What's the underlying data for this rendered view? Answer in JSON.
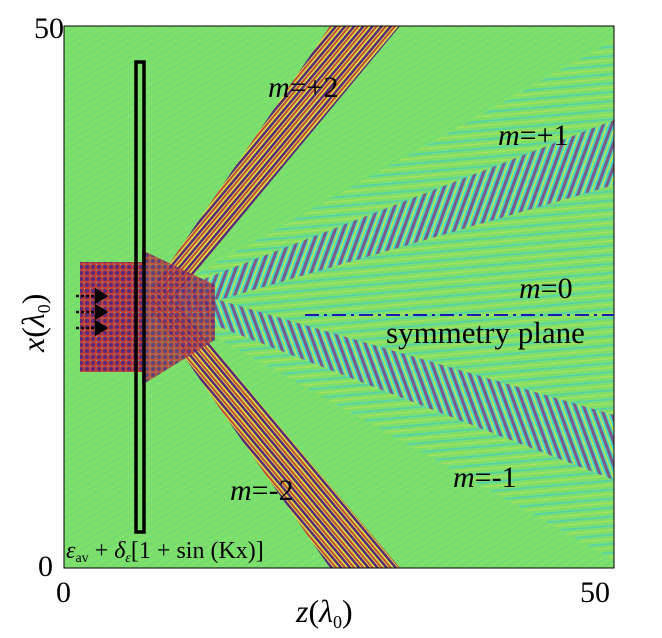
{
  "axes": {
    "x_label_main": "z",
    "x_label_unit_open": "(",
    "x_label_unit_sym": "λ",
    "x_label_unit_sub": "0",
    "x_label_unit_close": ")",
    "y_label_main": "x",
    "y_label_unit_open": "(",
    "y_label_unit_sym": "λ",
    "y_label_unit_sub": "0",
    "y_label_unit_close": ")",
    "x_ticks": [
      "0",
      "50"
    ],
    "y_ticks": [
      "0",
      "50"
    ]
  },
  "orders": {
    "m_plus2": {
      "m": "m",
      "eq": "=+2"
    },
    "m_plus1": {
      "m": "m",
      "eq": "=+1"
    },
    "m_zero": {
      "m": "m",
      "eq": "=0"
    },
    "m_minus1": {
      "m": "m",
      "eq": "=-1"
    },
    "m_minus2": {
      "m": "m",
      "eq": "=-2"
    }
  },
  "symmetry_label": "symmetry plane",
  "formula": {
    "eps": "ε",
    "eps_sub": "av",
    "plus": " + ",
    "delta": "δ",
    "delta_sub": "ε",
    "bracket": "[1 + sin (Kx)]"
  },
  "colors": {
    "background_field": "#7ee06a",
    "wave_dark": "#5a2a7a",
    "wave_red": "#c0403a",
    "wave_cyan": "#38d8d8",
    "wave_yellow": "#d8e040",
    "symmetry_line": "#1a1ab0",
    "slab": "#000000"
  }
}
